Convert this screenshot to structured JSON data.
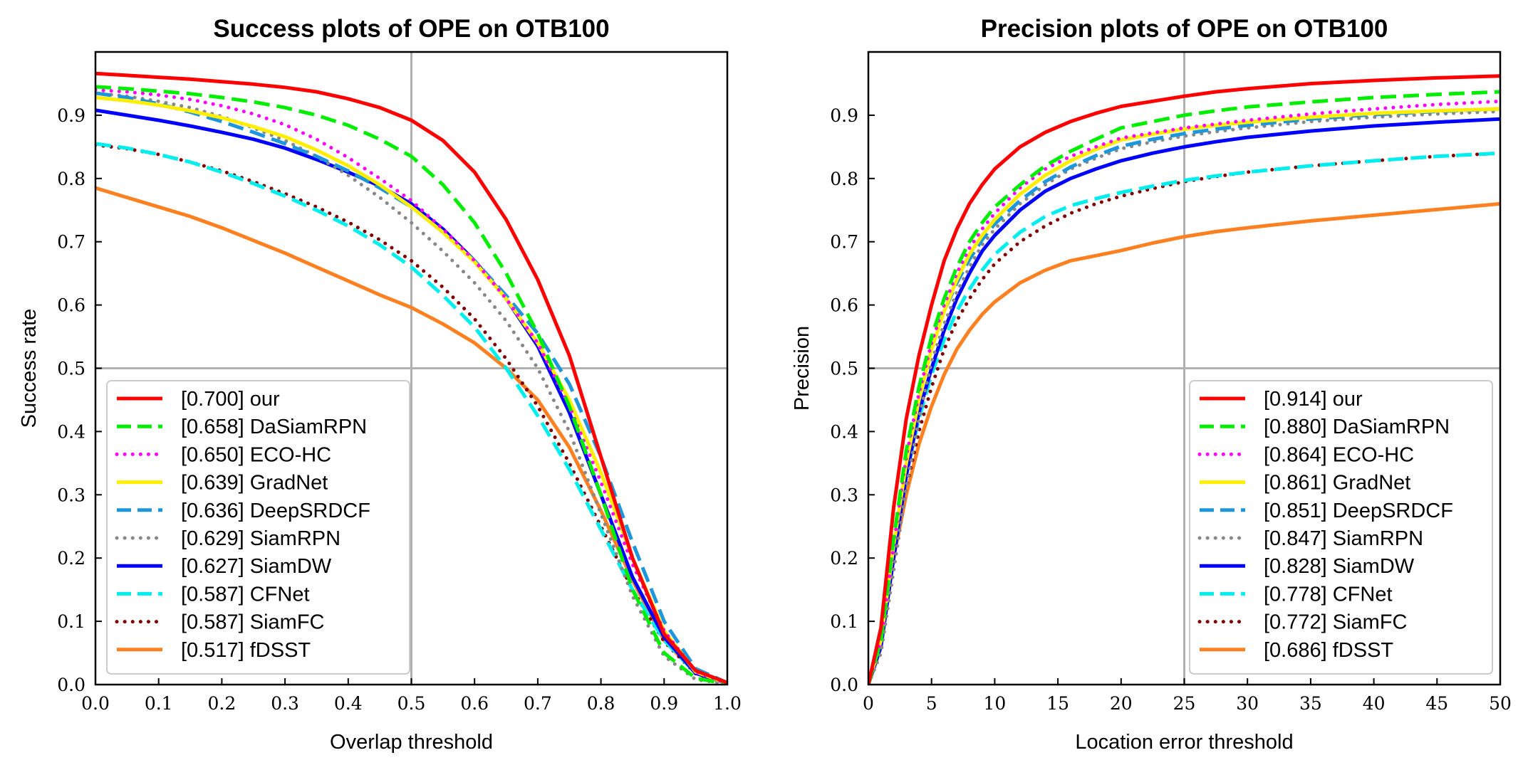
{
  "chart_data": [
    {
      "type": "line",
      "title": "Success plots of OPE on OTB100",
      "xlabel": "Overlap threshold",
      "ylabel": "Success rate",
      "xlim": [
        0,
        1
      ],
      "ylim": [
        0,
        1
      ],
      "xticks": [
        "0.0",
        "0.1",
        "0.2",
        "0.3",
        "0.4",
        "0.5",
        "0.6",
        "0.7",
        "0.8",
        "0.9",
        "1.0"
      ],
      "yticks": [
        "0.0",
        "0.1",
        "0.2",
        "0.3",
        "0.4",
        "0.5",
        "0.6",
        "0.7",
        "0.8",
        "0.9"
      ],
      "ref_lines": {
        "x": 0.5,
        "y": 0.5
      },
      "legend_position": "lower-left",
      "x": [
        0,
        0.05,
        0.1,
        0.15,
        0.2,
        0.25,
        0.3,
        0.35,
        0.4,
        0.45,
        0.5,
        0.55,
        0.6,
        0.65,
        0.7,
        0.75,
        0.8,
        0.85,
        0.9,
        0.95,
        1.0
      ],
      "series": [
        {
          "name": "[0.700] our",
          "color": "#ff0000",
          "style": "solid",
          "values": [
            0.966,
            0.963,
            0.96,
            0.957,
            0.953,
            0.949,
            0.944,
            0.937,
            0.926,
            0.912,
            0.892,
            0.86,
            0.81,
            0.735,
            0.64,
            0.52,
            0.36,
            0.2,
            0.08,
            0.022,
            0.003
          ]
        },
        {
          "name": "[0.658] DaSiamRPN",
          "color": "#00ee00",
          "style": "dashed",
          "values": [
            0.945,
            0.942,
            0.938,
            0.934,
            0.928,
            0.921,
            0.912,
            0.9,
            0.884,
            0.862,
            0.835,
            0.79,
            0.73,
            0.65,
            0.555,
            0.44,
            0.3,
            0.15,
            0.05,
            0.01,
            0.001
          ]
        },
        {
          "name": "[0.650] ECO-HC",
          "color": "#ff00ff",
          "style": "dotted",
          "values": [
            0.94,
            0.937,
            0.932,
            0.925,
            0.915,
            0.902,
            0.885,
            0.862,
            0.833,
            0.8,
            0.765,
            0.72,
            0.67,
            0.61,
            0.54,
            0.44,
            0.32,
            0.19,
            0.085,
            0.02,
            0.002
          ]
        },
        {
          "name": "[0.639] GradNet",
          "color": "#ffee00",
          "style": "solid",
          "values": [
            0.928,
            0.923,
            0.916,
            0.907,
            0.896,
            0.882,
            0.866,
            0.845,
            0.82,
            0.79,
            0.755,
            0.715,
            0.668,
            0.61,
            0.54,
            0.45,
            0.335,
            0.2,
            0.085,
            0.02,
            0.002
          ]
        },
        {
          "name": "[0.636] DeepSRDCF",
          "color": "#1e96dc",
          "style": "dashed",
          "values": [
            0.935,
            0.928,
            0.918,
            0.905,
            0.89,
            0.873,
            0.855,
            0.835,
            0.812,
            0.785,
            0.755,
            0.715,
            0.67,
            0.615,
            0.555,
            0.475,
            0.36,
            0.225,
            0.1,
            0.025,
            0.003
          ]
        },
        {
          "name": "[0.629] SiamRPN",
          "color": "#888888",
          "style": "dotted",
          "values": [
            0.935,
            0.93,
            0.922,
            0.912,
            0.898,
            0.88,
            0.86,
            0.835,
            0.805,
            0.77,
            0.73,
            0.685,
            0.635,
            0.575,
            0.5,
            0.4,
            0.27,
            0.14,
            0.045,
            0.008,
            0.001
          ]
        },
        {
          "name": "[0.627] SiamDW",
          "color": "#0000ff",
          "style": "solid",
          "values": [
            0.908,
            0.9,
            0.892,
            0.883,
            0.873,
            0.862,
            0.848,
            0.83,
            0.81,
            0.788,
            0.76,
            0.72,
            0.67,
            0.61,
            0.535,
            0.43,
            0.3,
            0.17,
            0.075,
            0.018,
            0.002
          ]
        },
        {
          "name": "[0.587] CFNet",
          "color": "#00eeee",
          "style": "dashed",
          "values": [
            0.855,
            0.848,
            0.838,
            0.826,
            0.81,
            0.792,
            0.772,
            0.75,
            0.725,
            0.695,
            0.66,
            0.615,
            0.565,
            0.5,
            0.425,
            0.34,
            0.245,
            0.15,
            0.07,
            0.018,
            0.002
          ]
        },
        {
          "name": "[0.587] SiamFC",
          "color": "#800000",
          "style": "dotted",
          "values": [
            0.853,
            0.847,
            0.838,
            0.826,
            0.812,
            0.795,
            0.776,
            0.755,
            0.731,
            0.703,
            0.67,
            0.628,
            0.578,
            0.515,
            0.44,
            0.35,
            0.25,
            0.15,
            0.068,
            0.017,
            0.002
          ]
        },
        {
          "name": "[0.517] fDSST",
          "color": "#ff8020",
          "style": "solid",
          "values": [
            0.785,
            0.77,
            0.755,
            0.74,
            0.722,
            0.702,
            0.682,
            0.66,
            0.638,
            0.616,
            0.596,
            0.57,
            0.54,
            0.5,
            0.45,
            0.375,
            0.275,
            0.165,
            0.07,
            0.018,
            0.002
          ]
        }
      ]
    },
    {
      "type": "line",
      "title": "Precision plots of OPE on OTB100",
      "xlabel": "Location error threshold",
      "ylabel": "Precision",
      "xlim": [
        0,
        50
      ],
      "ylim": [
        0,
        1
      ],
      "xticks": [
        "0",
        "5",
        "10",
        "15",
        "20",
        "25",
        "30",
        "35",
        "40",
        "45",
        "50"
      ],
      "yticks": [
        "0.0",
        "0.1",
        "0.2",
        "0.3",
        "0.4",
        "0.5",
        "0.6",
        "0.7",
        "0.8",
        "0.9"
      ],
      "ref_lines": {
        "x": 25,
        "y": 0.5
      },
      "legend_position": "lower-right",
      "x": [
        0,
        1,
        2,
        3,
        4,
        5,
        6,
        7,
        8,
        9,
        10,
        12,
        14,
        16,
        18,
        20,
        22.5,
        25,
        27.5,
        30,
        35,
        40,
        45,
        50
      ],
      "series": [
        {
          "name": "[0.914] our",
          "color": "#ff0000",
          "style": "solid",
          "values": [
            0,
            0.09,
            0.28,
            0.42,
            0.52,
            0.6,
            0.67,
            0.72,
            0.76,
            0.79,
            0.815,
            0.85,
            0.873,
            0.89,
            0.903,
            0.914,
            0.922,
            0.93,
            0.937,
            0.942,
            0.95,
            0.955,
            0.959,
            0.962
          ]
        },
        {
          "name": "[0.880] DaSiamRPN",
          "color": "#00ee00",
          "style": "dashed",
          "values": [
            0,
            0.07,
            0.23,
            0.37,
            0.47,
            0.55,
            0.61,
            0.66,
            0.7,
            0.73,
            0.755,
            0.79,
            0.82,
            0.843,
            0.862,
            0.88,
            0.89,
            0.9,
            0.907,
            0.913,
            0.921,
            0.928,
            0.933,
            0.937
          ]
        },
        {
          "name": "[0.864] ECO-HC",
          "color": "#ff00ff",
          "style": "dotted",
          "values": [
            0,
            0.07,
            0.22,
            0.36,
            0.46,
            0.54,
            0.6,
            0.65,
            0.69,
            0.72,
            0.745,
            0.785,
            0.815,
            0.835,
            0.85,
            0.864,
            0.872,
            0.88,
            0.886,
            0.892,
            0.902,
            0.91,
            0.917,
            0.922
          ]
        },
        {
          "name": "[0.861] GradNet",
          "color": "#ffee00",
          "style": "solid",
          "values": [
            0,
            0.07,
            0.22,
            0.35,
            0.45,
            0.53,
            0.59,
            0.64,
            0.68,
            0.71,
            0.735,
            0.775,
            0.805,
            0.828,
            0.846,
            0.861,
            0.87,
            0.878,
            0.884,
            0.889,
            0.897,
            0.903,
            0.907,
            0.91
          ]
        },
        {
          "name": "[0.851] DeepSRDCF",
          "color": "#1e96dc",
          "style": "dashed",
          "values": [
            0,
            0.08,
            0.23,
            0.36,
            0.46,
            0.535,
            0.59,
            0.635,
            0.672,
            0.703,
            0.728,
            0.765,
            0.795,
            0.818,
            0.836,
            0.851,
            0.862,
            0.871,
            0.878,
            0.884,
            0.894,
            0.901,
            0.906,
            0.91
          ]
        },
        {
          "name": "[0.847] SiamRPN",
          "color": "#888888",
          "style": "dotted",
          "values": [
            0,
            0.05,
            0.18,
            0.31,
            0.42,
            0.51,
            0.57,
            0.62,
            0.66,
            0.695,
            0.72,
            0.76,
            0.79,
            0.815,
            0.832,
            0.847,
            0.858,
            0.867,
            0.874,
            0.88,
            0.89,
            0.897,
            0.902,
            0.906
          ]
        },
        {
          "name": "[0.828] SiamDW",
          "color": "#0000ff",
          "style": "solid",
          "values": [
            0,
            0.06,
            0.2,
            0.33,
            0.43,
            0.5,
            0.56,
            0.61,
            0.65,
            0.685,
            0.71,
            0.75,
            0.78,
            0.8,
            0.815,
            0.828,
            0.84,
            0.85,
            0.858,
            0.865,
            0.875,
            0.883,
            0.889,
            0.894
          ]
        },
        {
          "name": "[0.778] CFNet",
          "color": "#00eeee",
          "style": "dashed",
          "values": [
            0,
            0.07,
            0.21,
            0.33,
            0.42,
            0.49,
            0.545,
            0.59,
            0.625,
            0.655,
            0.68,
            0.715,
            0.74,
            0.757,
            0.768,
            0.778,
            0.788,
            0.797,
            0.804,
            0.81,
            0.82,
            0.828,
            0.835,
            0.84
          ]
        },
        {
          "name": "[0.772] SiamFC",
          "color": "#800000",
          "style": "dotted",
          "values": [
            0,
            0.06,
            0.19,
            0.31,
            0.4,
            0.47,
            0.53,
            0.575,
            0.61,
            0.64,
            0.665,
            0.7,
            0.725,
            0.745,
            0.76,
            0.772,
            0.784,
            0.795,
            0.803,
            0.81,
            0.82,
            0.828,
            0.835,
            0.84
          ]
        },
        {
          "name": "[0.686] fDSST",
          "color": "#ff8020",
          "style": "solid",
          "values": [
            0,
            0.07,
            0.2,
            0.3,
            0.38,
            0.44,
            0.49,
            0.53,
            0.56,
            0.585,
            0.605,
            0.635,
            0.655,
            0.67,
            0.678,
            0.686,
            0.698,
            0.708,
            0.716,
            0.722,
            0.733,
            0.742,
            0.751,
            0.76
          ]
        }
      ]
    }
  ]
}
